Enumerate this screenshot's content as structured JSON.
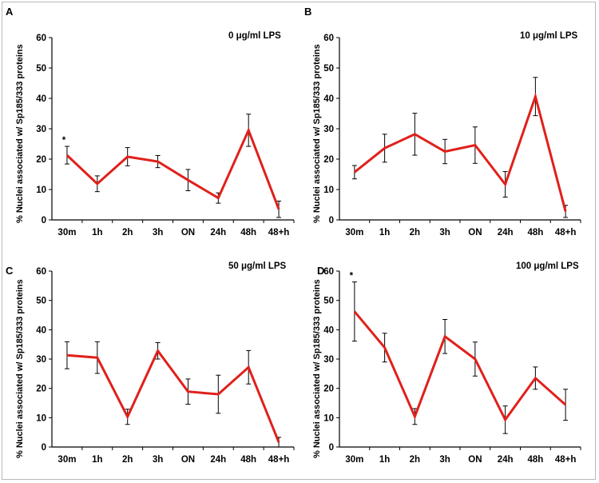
{
  "chart_data": [
    {
      "panel": "A",
      "type": "line",
      "title": "0 μg/ml LPS",
      "ylabel": "% Nuclei associated w/ Sp185/333 proteins",
      "categories": [
        "30m",
        "1h",
        "2h",
        "3h",
        "ON",
        "24h",
        "48h",
        "48+h"
      ],
      "values": [
        21.3,
        11.9,
        20.8,
        19.2,
        13.1,
        7.2,
        29.5,
        3.5
      ],
      "errors": [
        2.9,
        2.6,
        3.0,
        2.0,
        3.5,
        1.7,
        5.3,
        2.7
      ],
      "annotations": [
        {
          "category": "30m",
          "text": "*"
        }
      ],
      "ylim": [
        0,
        60
      ],
      "yticks": [
        0,
        10,
        20,
        30,
        40,
        50,
        60
      ],
      "line_color": "#e0201b",
      "grid": false
    },
    {
      "panel": "B",
      "type": "line",
      "title": "10 μg/ml LPS",
      "ylabel": "% Nuclei associated w/ Sp185/333 proteins",
      "categories": [
        "30m",
        "1h",
        "2h",
        "3h",
        "ON",
        "24h",
        "48h",
        "48+h"
      ],
      "values": [
        15.7,
        23.6,
        28.2,
        22.5,
        24.6,
        11.7,
        40.6,
        2.8
      ],
      "errors": [
        2.2,
        4.6,
        6.9,
        4.0,
        6.0,
        4.2,
        6.3,
        2.0
      ],
      "annotations": [],
      "ylim": [
        0,
        60
      ],
      "yticks": [
        0,
        10,
        20,
        30,
        40,
        50,
        60
      ],
      "line_color": "#e0201b",
      "grid": false
    },
    {
      "panel": "C",
      "type": "line",
      "title": "50 μg/ml LPS",
      "ylabel": "% Nuclei associated w/ Sp185/333 proteins",
      "categories": [
        "30m",
        "1h",
        "2h",
        "3h",
        "ON",
        "24h",
        "48h",
        "48+h"
      ],
      "values": [
        31.3,
        30.5,
        10.3,
        32.8,
        18.9,
        18.0,
        27.2,
        1.6
      ],
      "errors": [
        4.6,
        5.4,
        2.6,
        2.8,
        4.3,
        6.5,
        5.7,
        1.7
      ],
      "annotations": [],
      "ylim": [
        0,
        60
      ],
      "yticks": [
        0,
        10,
        20,
        30,
        40,
        50,
        60
      ],
      "line_color": "#e0201b",
      "grid": false
    },
    {
      "panel": "D",
      "type": "line",
      "title": "100 μg/ml LPS",
      "ylabel": "% Nuclei associated w/ Sp185/333 proteins",
      "categories": [
        "30m",
        "1h",
        "2h",
        "3h",
        "ON",
        "24h",
        "48h",
        "48+h"
      ],
      "values": [
        46.2,
        33.9,
        10.4,
        37.7,
        30.0,
        9.3,
        23.5,
        14.4
      ],
      "errors": [
        10.1,
        4.9,
        2.7,
        5.8,
        5.8,
        4.7,
        3.8,
        5.3
      ],
      "annotations": [
        {
          "category": "30m",
          "text": "*"
        }
      ],
      "ylim": [
        0,
        60
      ],
      "yticks": [
        0,
        10,
        20,
        30,
        40,
        50,
        60
      ],
      "line_color": "#e0201b",
      "grid": false
    }
  ]
}
